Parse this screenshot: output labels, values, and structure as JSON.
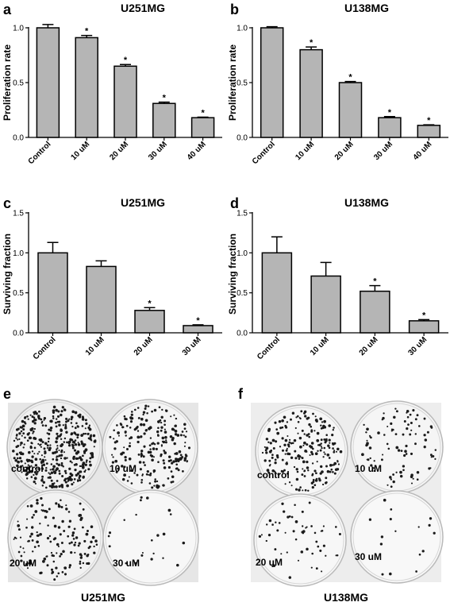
{
  "chart_data": [
    {
      "panel": "a",
      "title": "U251MG",
      "type": "bar",
      "ylabel": "Proliferation rate",
      "ylim": [
        0,
        1.0
      ],
      "yticks": [
        "0.0",
        "0.5",
        "1.0"
      ],
      "categories": [
        "Control",
        "10 uM",
        "20 uM",
        "30 uM",
        "40 uM"
      ],
      "values": [
        1.0,
        0.91,
        0.65,
        0.31,
        0.18
      ],
      "errors": [
        0.03,
        0.02,
        0.015,
        0.012,
        0.005
      ],
      "significant": [
        false,
        true,
        true,
        true,
        true
      ],
      "star": "*"
    },
    {
      "panel": "b",
      "title": "U138MG",
      "type": "bar",
      "ylabel": "Proliferation rate",
      "ylim": [
        0,
        1.0
      ],
      "yticks": [
        "0.0",
        "0.5",
        "1.0"
      ],
      "categories": [
        "Control",
        "10 uM",
        "20 uM",
        "30 uM",
        "40 uM"
      ],
      "values": [
        1.0,
        0.8,
        0.5,
        0.18,
        0.11
      ],
      "errors": [
        0.01,
        0.025,
        0.01,
        0.01,
        0.005
      ],
      "significant": [
        false,
        true,
        true,
        true,
        true
      ],
      "star": "*"
    },
    {
      "panel": "c",
      "title": "U251MG",
      "type": "bar",
      "ylabel": "Surviving fraction",
      "ylim": [
        0,
        1.5
      ],
      "yticks": [
        "0.0",
        "0.5",
        "1.0",
        "1.5"
      ],
      "categories": [
        "Control",
        "10 uM",
        "20 uM",
        "30 uM"
      ],
      "values": [
        1.0,
        0.83,
        0.28,
        0.09
      ],
      "errors": [
        0.13,
        0.07,
        0.035,
        0.01
      ],
      "significant": [
        false,
        false,
        true,
        true
      ],
      "star": "*"
    },
    {
      "panel": "d",
      "title": "U138MG",
      "type": "bar",
      "ylabel": "Surviving fraction",
      "ylim": [
        0,
        1.5
      ],
      "yticks": [
        "0.0",
        "0.5",
        "1.0",
        "1.5"
      ],
      "categories": [
        "Control",
        "10 uM",
        "20 uM",
        "30 uM"
      ],
      "values": [
        1.0,
        0.71,
        0.52,
        0.15
      ],
      "errors": [
        0.2,
        0.17,
        0.07,
        0.015
      ],
      "significant": [
        false,
        false,
        true,
        true
      ],
      "star": "*"
    }
  ],
  "colony_panels": {
    "e": {
      "label": "e",
      "caption": "U251MG",
      "dishes": [
        {
          "label": "control",
          "density": 420
        },
        {
          "label": "10 uM",
          "density": 230
        },
        {
          "label": "20 uM",
          "density": 150
        },
        {
          "label": "30 uM",
          "density": 22
        }
      ]
    },
    "f": {
      "label": "f",
      "caption": "U138MG",
      "dishes": [
        {
          "label": "control",
          "density": 230
        },
        {
          "label": "10 uM",
          "density": 95
        },
        {
          "label": "20 uM",
          "density": 55
        },
        {
          "label": "30 uM",
          "density": 16
        }
      ]
    }
  },
  "colors": {
    "bar_fill": "#b5b5b5",
    "bar_stroke": "#000000",
    "dish_bg": "#f3f3f3",
    "colony": "#1a1a1a"
  }
}
